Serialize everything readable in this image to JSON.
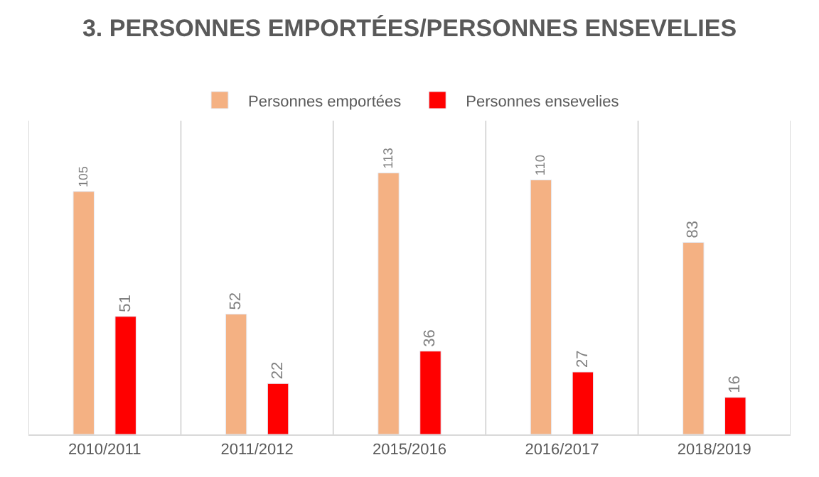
{
  "chart_data": {
    "type": "bar",
    "title": "3. PERSONNES EMPORTÉES/PERSONNES ENSEVELIES",
    "categories": [
      "2010/2011",
      "2011/2012",
      "2015/2016",
      "2016/2017",
      "2018/2019"
    ],
    "series": [
      {
        "name": "Personnes emportées",
        "color": "#f4b183",
        "values": [
          105,
          52,
          113,
          110,
          83
        ]
      },
      {
        "name": "Personnes ensevelies",
        "color": "#ff0000",
        "values": [
          51,
          22,
          36,
          27,
          16
        ]
      }
    ],
    "data_labels": true,
    "grid": "x",
    "legend": "top"
  }
}
